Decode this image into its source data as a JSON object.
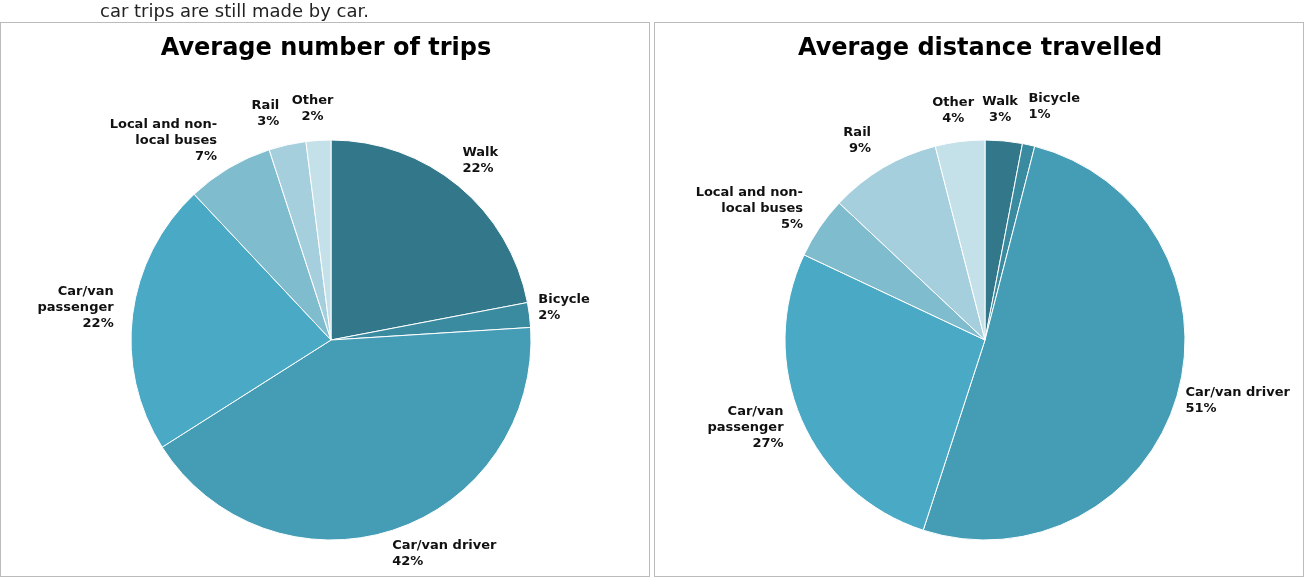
{
  "chart_data": [
    {
      "type": "pie",
      "title": "Average number of trips",
      "annotations": [
        "car trips are still made by car."
      ],
      "categories": [
        "Walk",
        "Bicycle",
        "Car/van driver",
        "Car/van passenger",
        "Local and non-local buses",
        "Rail",
        "Other"
      ],
      "values": [
        22,
        2,
        42,
        22,
        7,
        3,
        2
      ],
      "value_labels": [
        "22%",
        "2%",
        "42%",
        "22%",
        "7%",
        "3%",
        "2%"
      ],
      "colors": [
        "#33788a",
        "#3a8ba0",
        "#459db5",
        "#4aa9c5",
        "#7fbccd",
        "#a6cfdd",
        "#c4e0e8"
      ],
      "legend": false
    },
    {
      "type": "pie",
      "title": "Average distance travelled",
      "categories": [
        "Walk",
        "Bicycle",
        "Car/van driver",
        "Car/van passenger",
        "Local and non-local buses",
        "Rail",
        "Other"
      ],
      "values": [
        3,
        1,
        51,
        27,
        5,
        9,
        4
      ],
      "value_labels": [
        "3%",
        "1%",
        "51%",
        "27%",
        "5%",
        "9%",
        "4%"
      ],
      "colors": [
        "#33788a",
        "#3a8ba0",
        "#459db5",
        "#4aa9c5",
        "#7fbccd",
        "#a6cfdd",
        "#c4e0e8"
      ],
      "legend": false
    }
  ]
}
